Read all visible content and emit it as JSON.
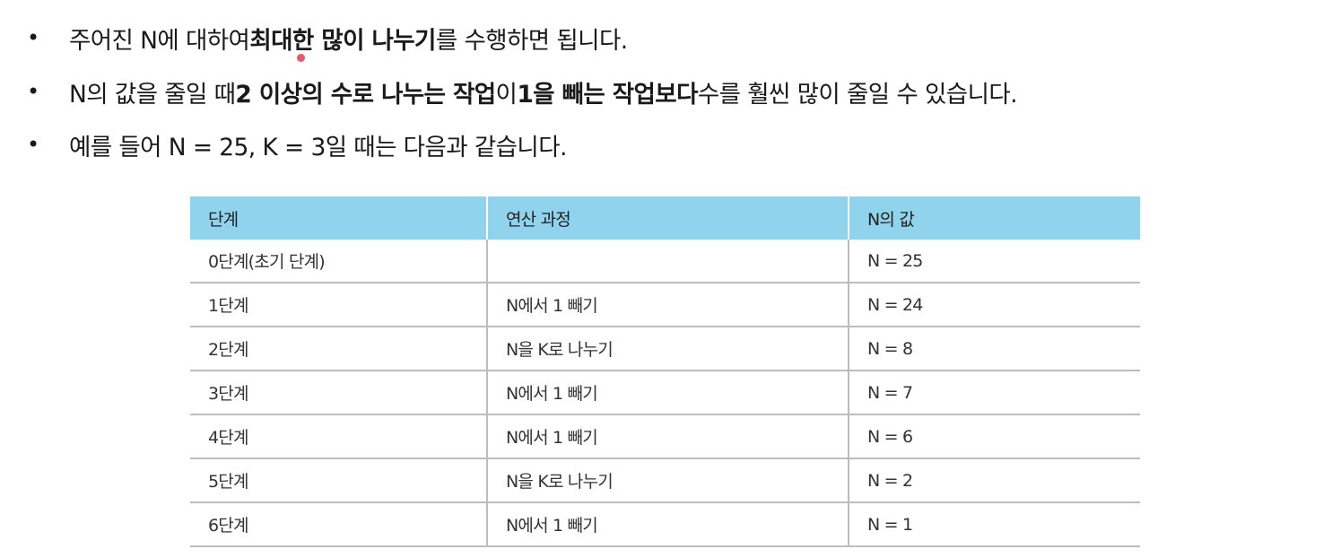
{
  "bullets": [
    {
      "segments": [
        {
          "text": "주어진 N에 대하여 ",
          "bold": false
        },
        {
          "text": "최대한 많이 나누기",
          "bold": true
        },
        {
          "text": "를 수행하면 됩니다.",
          "bold": false
        }
      ]
    },
    {
      "segments": [
        {
          "text": "N의 값을 줄일 때 ",
          "bold": false
        },
        {
          "text": "2 이상의 수로 나누는 작업",
          "bold": true
        },
        {
          "text": "이 ",
          "bold": false
        },
        {
          "text": "1을 빼는 작업보다",
          "bold": true
        },
        {
          "text": " 수를 훨씬 많이 줄일 수 있습니다.",
          "bold": false
        }
      ]
    },
    {
      "segments": [
        {
          "text": "예를 들어 N = 25, K = 3일 때는 다음과 같습니다.",
          "bold": false
        }
      ]
    }
  ],
  "table": {
    "headers": [
      "단계",
      "연산 과정",
      "N의 값"
    ],
    "rows": [
      [
        "0단계(초기 단계)",
        "",
        "N = 25"
      ],
      [
        "1단계",
        "N에서 1 빼기",
        "N = 24"
      ],
      [
        "2단계",
        "N을 K로 나누기",
        "N = 8"
      ],
      [
        "3단계",
        "N에서 1 빼기",
        "N = 7"
      ],
      [
        "4단계",
        "N에서 1 빼기",
        "N = 6"
      ],
      [
        "5단계",
        "N을 K로 나누기",
        "N = 2"
      ],
      [
        "6단계",
        "N에서 1 빼기",
        "N = 1"
      ]
    ]
  },
  "colors": {
    "header_bg": "#8fd3ed",
    "cursor_dot": "#e8384f"
  }
}
